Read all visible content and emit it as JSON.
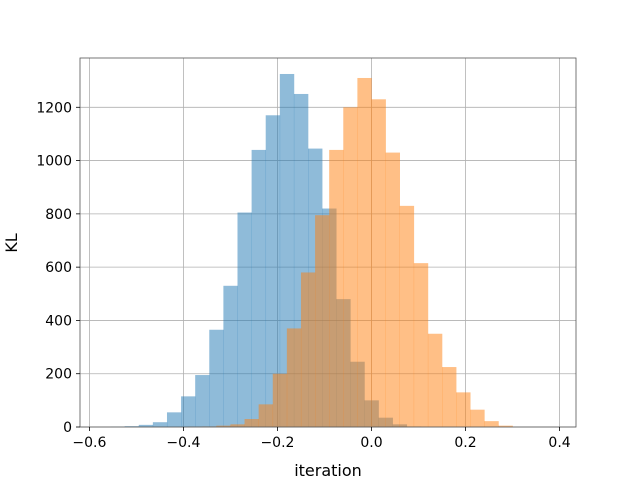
{
  "chart_data": {
    "type": "histogram",
    "xlabel": "iteration",
    "ylabel": "KL",
    "xlim": [
      -0.62,
      0.435
    ],
    "ylim": [
      0,
      1385
    ],
    "grid": true,
    "x_ticks": [
      {
        "value": -0.6,
        "label": "−0.6"
      },
      {
        "value": -0.4,
        "label": "−0.4"
      },
      {
        "value": -0.2,
        "label": "−0.2"
      },
      {
        "value": 0.0,
        "label": "0.0"
      },
      {
        "value": 0.2,
        "label": "0.2"
      },
      {
        "value": 0.4,
        "label": "0.4"
      }
    ],
    "y_ticks": [
      {
        "value": 0,
        "label": "0"
      },
      {
        "value": 200,
        "label": "200"
      },
      {
        "value": 400,
        "label": "400"
      },
      {
        "value": 600,
        "label": "600"
      },
      {
        "value": 800,
        "label": "800"
      },
      {
        "value": 1000,
        "label": "1000"
      },
      {
        "value": 1200,
        "label": "1200"
      }
    ],
    "series": [
      {
        "color": "#1f77b4",
        "opacity": 0.5,
        "bin_edges": [
          -0.555,
          -0.525,
          -0.495,
          -0.465,
          -0.435,
          -0.405,
          -0.375,
          -0.345,
          -0.315,
          -0.285,
          -0.255,
          -0.225,
          -0.195,
          -0.165,
          -0.135,
          -0.105,
          -0.075,
          -0.045,
          -0.015,
          0.015,
          0.045,
          0.075,
          0.105
        ],
        "counts": [
          1,
          3,
          8,
          18,
          55,
          115,
          195,
          365,
          530,
          805,
          1040,
          1170,
          1325,
          1250,
          1045,
          820,
          480,
          245,
          100,
          35,
          10,
          2
        ]
      },
      {
        "color": "#ff7f0e",
        "opacity": 0.5,
        "bin_edges": [
          -0.39,
          -0.36,
          -0.33,
          -0.3,
          -0.27,
          -0.24,
          -0.21,
          -0.18,
          -0.15,
          -0.12,
          -0.09,
          -0.06,
          -0.03,
          0.0,
          0.03,
          0.06,
          0.09,
          0.12,
          0.15,
          0.18,
          0.21,
          0.24,
          0.27,
          0.3
        ],
        "counts": [
          1,
          2,
          5,
          10,
          30,
          85,
          200,
          370,
          580,
          795,
          1040,
          1200,
          1310,
          1230,
          1030,
          830,
          615,
          350,
          225,
          130,
          65,
          22,
          5
        ]
      }
    ]
  }
}
